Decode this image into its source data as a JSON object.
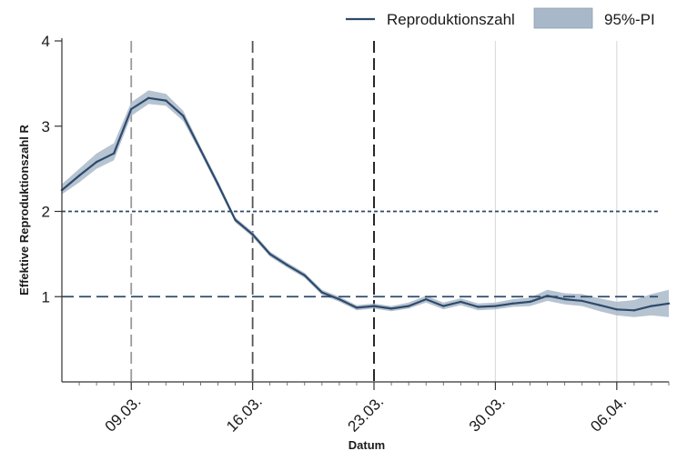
{
  "chart_data": {
    "type": "line",
    "xlabel": "Datum",
    "ylabel": "Effektive Reproduktionszahl R",
    "x_range": [
      "2020-03-05",
      "2020-04-09"
    ],
    "ylim": [
      0,
      4
    ],
    "yticks": [
      1,
      2,
      3,
      4
    ],
    "x_ticks": [
      {
        "date": "2020-03-09",
        "label": "09.03."
      },
      {
        "date": "2020-03-16",
        "label": "16.03."
      },
      {
        "date": "2020-03-23",
        "label": "23.03."
      },
      {
        "date": "2020-03-30",
        "label": "30.03."
      },
      {
        "date": "2020-04-06",
        "label": "06.04."
      }
    ],
    "legend": {
      "position": "top-right",
      "line_label": "Reproduktionszahl",
      "band_label": "95%-PI"
    },
    "series": [
      {
        "name": "Reproduktionszahl",
        "color": "#2e4a6b",
        "band_color": "#a9b8c9",
        "points": [
          {
            "date": "2020-03-05",
            "value": 2.25,
            "lower": 2.2,
            "upper": 2.32
          },
          {
            "date": "2020-03-06",
            "value": 2.42,
            "lower": 2.34,
            "upper": 2.5
          },
          {
            "date": "2020-03-07",
            "value": 2.58,
            "lower": 2.5,
            "upper": 2.68
          },
          {
            "date": "2020-03-08",
            "value": 2.68,
            "lower": 2.6,
            "upper": 2.8
          },
          {
            "date": "2020-03-09",
            "value": 3.2,
            "lower": 3.12,
            "upper": 3.28
          },
          {
            "date": "2020-03-10",
            "value": 3.33,
            "lower": 3.26,
            "upper": 3.42
          },
          {
            "date": "2020-03-11",
            "value": 3.3,
            "lower": 3.24,
            "upper": 3.38
          },
          {
            "date": "2020-03-12",
            "value": 3.12,
            "lower": 3.06,
            "upper": 3.18
          },
          {
            "date": "2020-03-13",
            "value": 2.72,
            "lower": 2.68,
            "upper": 2.76
          },
          {
            "date": "2020-03-14",
            "value": 2.32,
            "lower": 2.28,
            "upper": 2.36
          },
          {
            "date": "2020-03-15",
            "value": 1.9,
            "lower": 1.87,
            "upper": 1.93
          },
          {
            "date": "2020-03-16",
            "value": 1.73,
            "lower": 1.7,
            "upper": 1.76
          },
          {
            "date": "2020-03-17",
            "value": 1.5,
            "lower": 1.47,
            "upper": 1.53
          },
          {
            "date": "2020-03-18",
            "value": 1.37,
            "lower": 1.34,
            "upper": 1.4
          },
          {
            "date": "2020-03-19",
            "value": 1.25,
            "lower": 1.22,
            "upper": 1.28
          },
          {
            "date": "2020-03-20",
            "value": 1.05,
            "lower": 1.02,
            "upper": 1.08
          },
          {
            "date": "2020-03-21",
            "value": 0.97,
            "lower": 0.94,
            "upper": 1.0
          },
          {
            "date": "2020-03-22",
            "value": 0.87,
            "lower": 0.84,
            "upper": 0.9
          },
          {
            "date": "2020-03-23",
            "value": 0.89,
            "lower": 0.86,
            "upper": 0.92
          },
          {
            "date": "2020-03-24",
            "value": 0.86,
            "lower": 0.83,
            "upper": 0.89
          },
          {
            "date": "2020-03-25",
            "value": 0.89,
            "lower": 0.86,
            "upper": 0.93
          },
          {
            "date": "2020-03-26",
            "value": 0.97,
            "lower": 0.93,
            "upper": 1.01
          },
          {
            "date": "2020-03-27",
            "value": 0.89,
            "lower": 0.85,
            "upper": 0.93
          },
          {
            "date": "2020-03-28",
            "value": 0.94,
            "lower": 0.9,
            "upper": 0.98
          },
          {
            "date": "2020-03-29",
            "value": 0.88,
            "lower": 0.84,
            "upper": 0.92
          },
          {
            "date": "2020-03-30",
            "value": 0.89,
            "lower": 0.85,
            "upper": 0.93
          },
          {
            "date": "2020-03-31",
            "value": 0.92,
            "lower": 0.88,
            "upper": 0.97
          },
          {
            "date": "2020-04-01",
            "value": 0.94,
            "lower": 0.89,
            "upper": 0.99
          },
          {
            "date": "2020-04-02",
            "value": 1.01,
            "lower": 0.95,
            "upper": 1.08
          },
          {
            "date": "2020-04-03",
            "value": 0.97,
            "lower": 0.91,
            "upper": 1.04
          },
          {
            "date": "2020-04-04",
            "value": 0.95,
            "lower": 0.89,
            "upper": 1.03
          },
          {
            "date": "2020-04-05",
            "value": 0.9,
            "lower": 0.83,
            "upper": 0.98
          },
          {
            "date": "2020-04-06",
            "value": 0.85,
            "lower": 0.78,
            "upper": 0.94
          },
          {
            "date": "2020-04-07",
            "value": 0.84,
            "lower": 0.76,
            "upper": 0.96
          },
          {
            "date": "2020-04-08",
            "value": 0.89,
            "lower": 0.78,
            "upper": 1.03
          },
          {
            "date": "2020-04-09",
            "value": 0.92,
            "lower": 0.76,
            "upper": 1.08
          }
        ]
      }
    ],
    "reference_lines": [
      {
        "axis": "y",
        "value": 2,
        "style": "dotted",
        "color": "#2e4a6b"
      },
      {
        "axis": "y",
        "value": 1,
        "style": "dashed",
        "color": "#2e4a6b"
      },
      {
        "axis": "x",
        "date": "2020-03-09",
        "style": "dashed",
        "color": "#9a9a9a"
      },
      {
        "axis": "x",
        "date": "2020-03-16",
        "style": "dashed",
        "color": "#555555"
      },
      {
        "axis": "x",
        "date": "2020-03-23",
        "style": "dashed",
        "color": "#111111"
      },
      {
        "axis": "x",
        "date": "2020-03-30",
        "style": "solid",
        "color": "#dddddd"
      },
      {
        "axis": "x",
        "date": "2020-04-06",
        "style": "solid",
        "color": "#dddddd"
      }
    ]
  }
}
